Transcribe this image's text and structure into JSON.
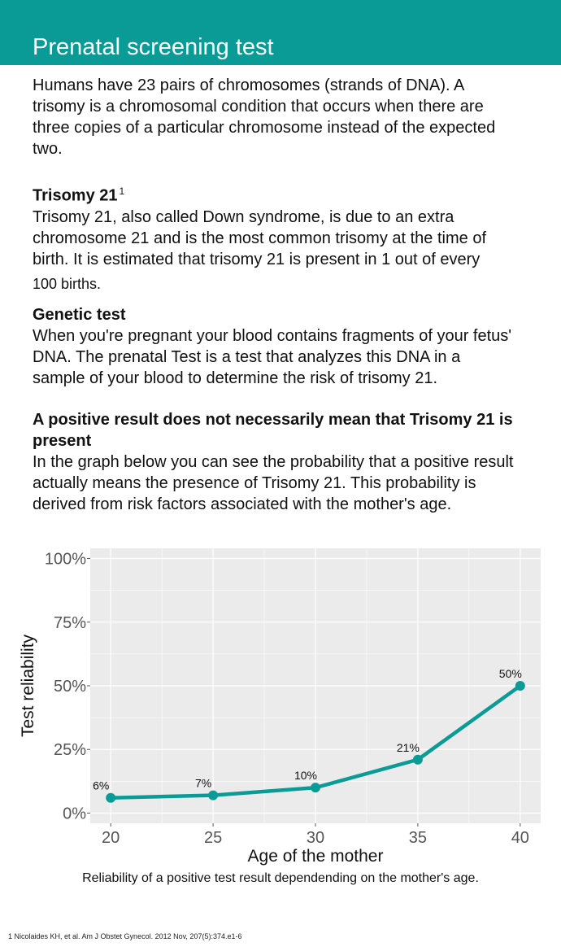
{
  "header": {
    "title": "Prenatal screening test"
  },
  "intro": {
    "lines": [
      "Humans have 23 pairs of chromosomes (strands of DNA). A",
      "trisomy is a chromosomal condition that occurs when there are",
      "three copies of a particular chromosome instead of the expected",
      "two."
    ]
  },
  "trisomy": {
    "heading": "Trisomy 21",
    "footnote_marker": "1",
    "lines": [
      "Trisomy 21, also called Down syndrome, is due to an extra",
      "chromosome 21 and is the most common trisomy at the time of",
      "birth. It is estimated that trisomy 21 is present in 1 out of every"
    ],
    "last_line": "100 births."
  },
  "genetic": {
    "heading": "Genetic test",
    "lines": [
      "When you're pregnant your blood contains fragments of your fetus'",
      "DNA. The prenatal Test is a test that analyzes this DNA in a",
      "sample of your blood to determine the risk of trisomy 21."
    ]
  },
  "positive": {
    "heading_lines": [
      "A positive result does not necessarily mean that Trisomy 21 is",
      "present"
    ],
    "lines": [
      "In the graph below you can see the probability that a positive result",
      "actually means the presence of Trisomy 21. This probability is",
      "derived from risk factors associated with the mother's age."
    ]
  },
  "chart_data": {
    "type": "line",
    "x": [
      20,
      25,
      30,
      35,
      40
    ],
    "series": [
      {
        "values": [
          6,
          7,
          10,
          21,
          50
        ],
        "labels": [
          "6%",
          "7%",
          "10%",
          "21%",
          "50%"
        ]
      }
    ],
    "xlabel": "Age of the mother",
    "ylabel": "Test reliability",
    "xlim": [
      19,
      41
    ],
    "ylim": [
      -4,
      104
    ],
    "xticks": [
      20,
      25,
      30,
      35,
      40
    ],
    "xtick_labels": [
      "20",
      "25",
      "30",
      "35",
      "40"
    ],
    "yticks": [
      0,
      25,
      50,
      75,
      100
    ],
    "ytick_labels": [
      "0%",
      "25%",
      "50%",
      "75%",
      "100%"
    ],
    "grid": true,
    "colors": {
      "line": "#0b9b97",
      "panel": "#ebebeb",
      "grid": "#ffffff"
    }
  },
  "caption": "Reliability of a positive test result dependending on the mother's age.",
  "footnote": "1 Nicolaides KH, et al. Am J Obstet Gynecol. 2012 Nov, 207(5):374.e1-6"
}
